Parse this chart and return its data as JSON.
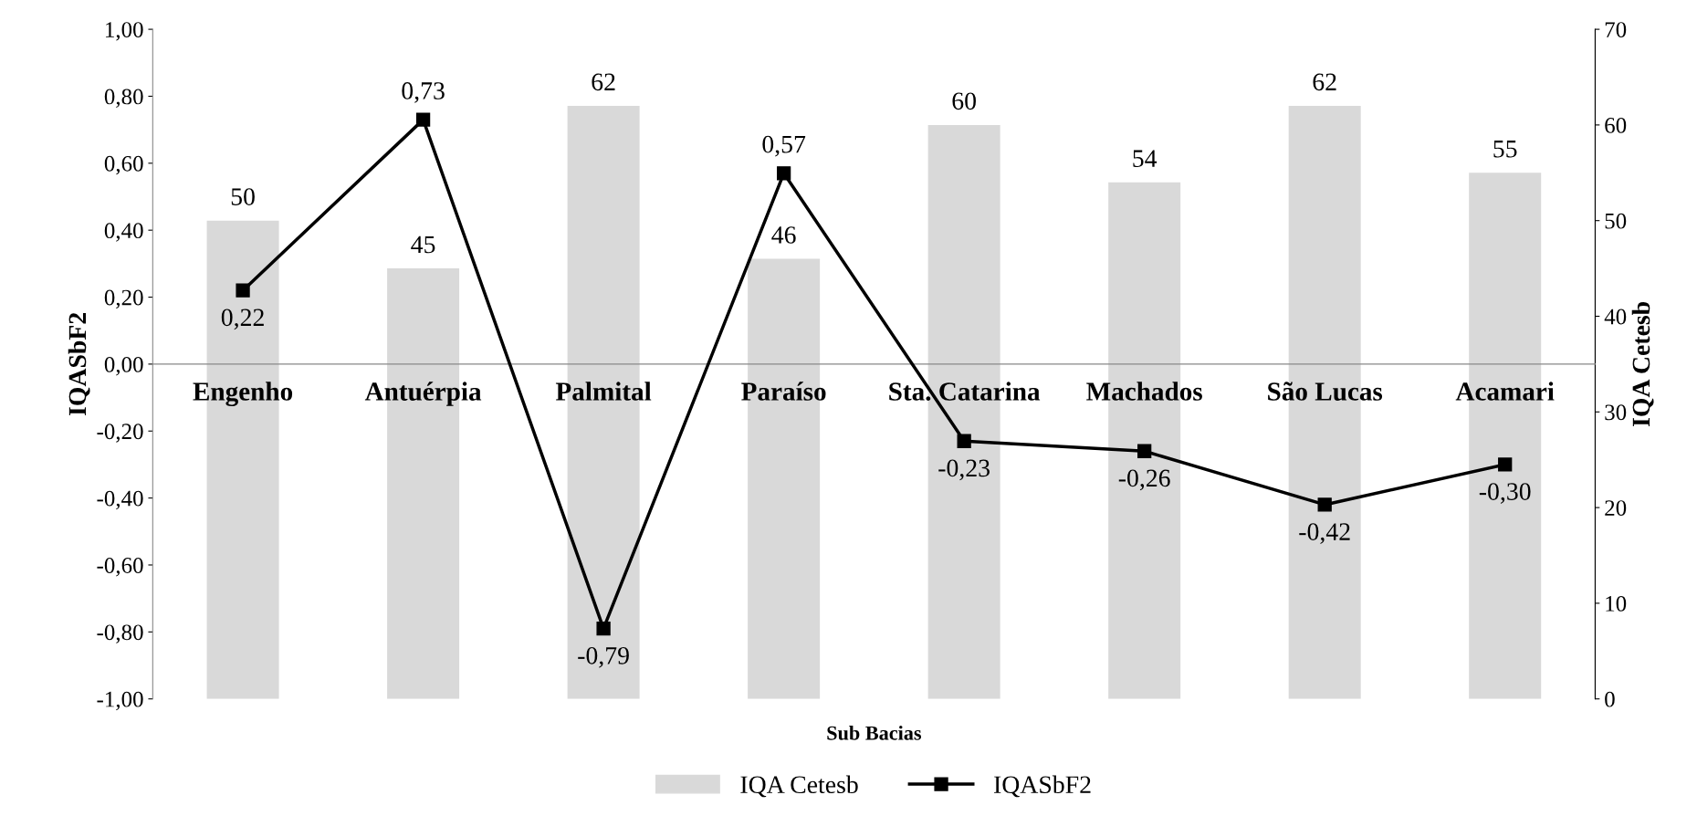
{
  "chart_data": {
    "type": "bar",
    "xlabel": "Sub Bacias",
    "ylabel": "IQASbF2",
    "y2label": "IQA Cetesb",
    "categories": [
      "Engenho",
      "Antuérpia",
      "Palmital",
      "Paraíso",
      "Sta. Catarina",
      "Machados",
      "São Lucas",
      "Acamari"
    ],
    "series": [
      {
        "name": "IQA Cetesb",
        "axis": "y2",
        "color": "#d9d9d9",
        "values": [
          50,
          45,
          62,
          46,
          60,
          54,
          62,
          55
        ],
        "value_labels": [
          "50",
          "45",
          "62",
          "46",
          "60",
          "54",
          "62",
          "55"
        ]
      },
      {
        "name": "IQASbF2",
        "type": "line",
        "axis": "y",
        "color": "#000000",
        "marker": "square",
        "line_style": "solid",
        "values": [
          0.22,
          0.73,
          -0.79,
          0.57,
          -0.23,
          -0.26,
          -0.42,
          -0.3
        ],
        "value_labels": [
          "0,22",
          "0,73",
          "-0,79",
          "0,57",
          "-0,23",
          "-0,26",
          "-0,42",
          "-0,30"
        ]
      }
    ],
    "ylim": [
      -1,
      1
    ],
    "yticks": [
      {
        "value": -1,
        "label": "-1,00"
      },
      {
        "value": -0.8,
        "label": "-0,80"
      },
      {
        "value": -0.6,
        "label": "-0,60"
      },
      {
        "value": -0.4,
        "label": "-0,40"
      },
      {
        "value": -0.2,
        "label": "-0,20"
      },
      {
        "value": 0,
        "label": "0,00"
      },
      {
        "value": 0.2,
        "label": "0,20"
      },
      {
        "value": 0.4,
        "label": "0,40"
      },
      {
        "value": 0.6,
        "label": "0,60"
      },
      {
        "value": 0.8,
        "label": "0,80"
      },
      {
        "value": 1,
        "label": "1,00"
      }
    ],
    "y2lim": [
      0,
      70
    ],
    "y2ticks": [
      0,
      10,
      20,
      30,
      40,
      50,
      60,
      70
    ],
    "grid": false,
    "legend": "bottom"
  }
}
